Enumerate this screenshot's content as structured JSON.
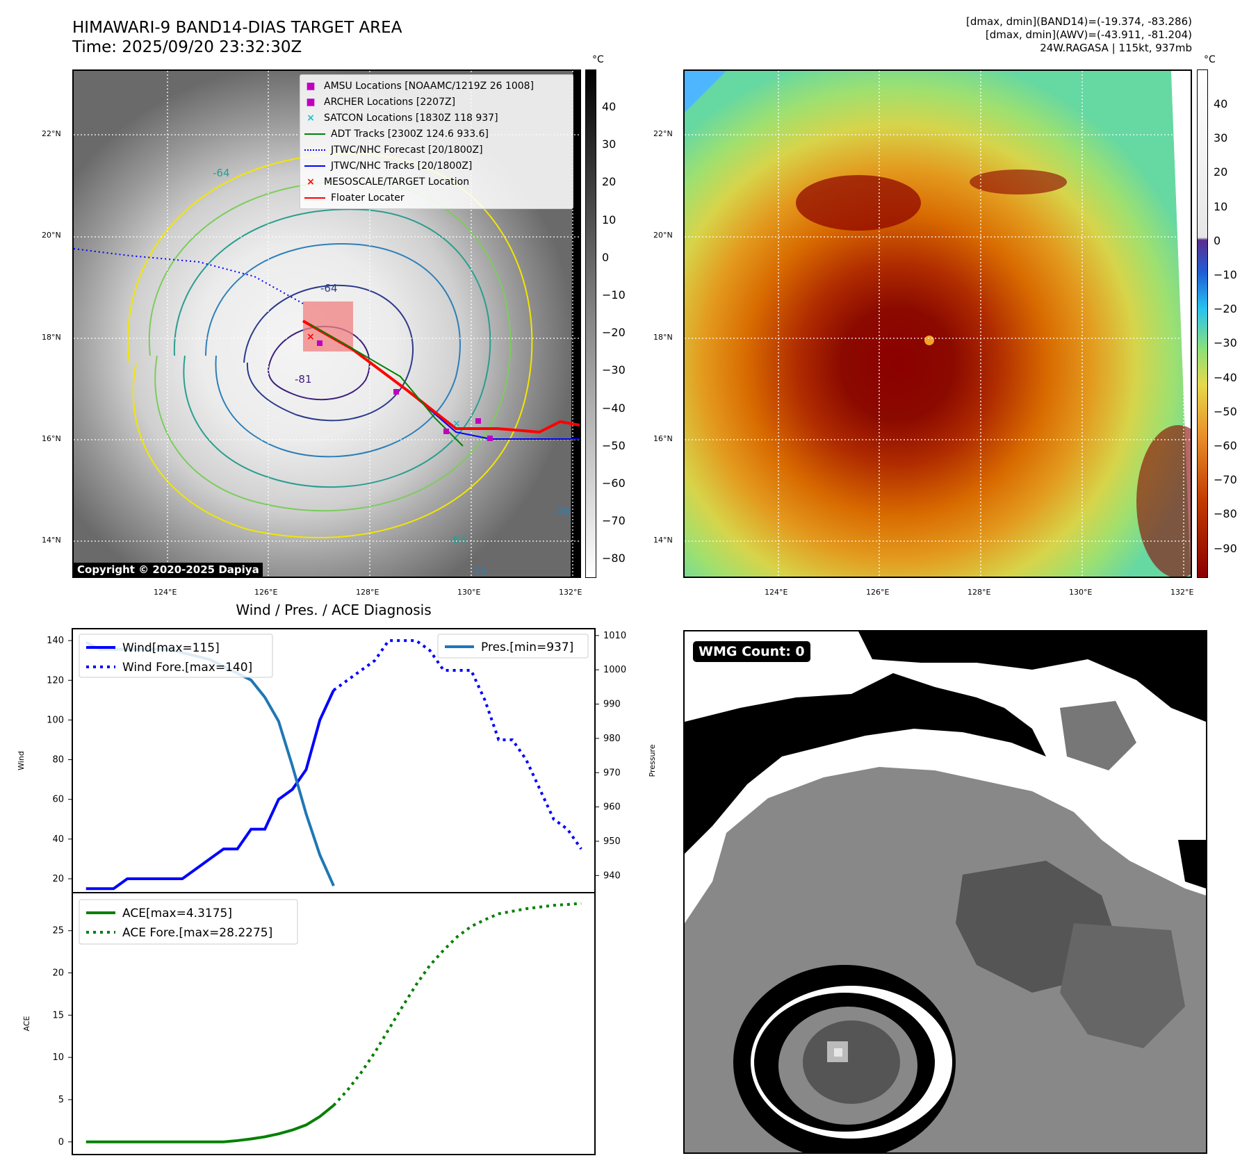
{
  "title": {
    "line1": "HIMAWARI-9 BAND14-DIAS TARGET AREA",
    "line2": "Time: 2025/09/20 23:32:30Z"
  },
  "info": {
    "line1": "[dmax, dmin](BAND14)=(-19.374, -83.286)",
    "line2": "[dmax, dmin](AWV)=(-43.911, -81.204)",
    "line3": "24W.RAGASA | 115kt, 937mb"
  },
  "map": {
    "lon_ticks": [
      "124°E",
      "126°E",
      "128°E",
      "130°E",
      "132°E"
    ],
    "lat_ticks": [
      "22°N",
      "20°N",
      "18°N",
      "16°N",
      "14°N"
    ],
    "copyright": "Copyright © 2020-2025 Dapiya",
    "contour_labels": [
      "-64",
      "-64",
      "-81",
      "-76",
      "-76",
      "-64"
    ]
  },
  "legend_sat": {
    "items": [
      {
        "label": "AMSU Locations [NOAAMC/1219Z 26 1008]",
        "color": "#c000c0",
        "marker": "square"
      },
      {
        "label": "ARCHER Locations [2207Z]",
        "color": "#c000c0",
        "marker": "square"
      },
      {
        "label": "SATCON Locations [1830Z 118 937]",
        "color": "#17becf",
        "marker": "x"
      },
      {
        "label": "ADT Tracks [2300Z 124.6 933.6]",
        "color": "#008000",
        "marker": "line"
      },
      {
        "label": "JTWC/NHC Forecast [20/1800Z]",
        "color": "#0000ff",
        "marker": "dotted"
      },
      {
        "label": "JTWC/NHC Tracks [20/1800Z]",
        "color": "#0000ff",
        "marker": "dotline"
      },
      {
        "label": "MESOSCALE/TARGET Location",
        "color": "#ff0000",
        "marker": "x"
      },
      {
        "label": "Floater Locater",
        "color": "#ff0000",
        "marker": "line"
      }
    ]
  },
  "colorbar_gray": {
    "unit": "°C",
    "ticks": [
      "40",
      "30",
      "20",
      "10",
      "0",
      "−10",
      "−20",
      "−30",
      "−40",
      "−50",
      "−60",
      "−70",
      "−80"
    ]
  },
  "colorbar_color": {
    "unit": "°C",
    "ticks": [
      "40",
      "30",
      "20",
      "10",
      "0",
      "−10",
      "−20",
      "−30",
      "−40",
      "−50",
      "−60",
      "−70",
      "−80",
      "−90"
    ]
  },
  "colors": {
    "wind": "#0000ff",
    "pressure": "#1f77b4",
    "ace": "#008000",
    "floater": "#ff0000"
  },
  "wmg": {
    "badge": "WMG Count: 0"
  },
  "chart_data": [
    {
      "type": "line",
      "title": "Wind / Pres. / ACE Diagnosis",
      "xlabel": "",
      "ylabel": "Wind",
      "ylim": [
        13,
        146
      ],
      "yticks": [
        20,
        40,
        60,
        80,
        100,
        120,
        140
      ],
      "y2label": "Pressure",
      "y2lim": [
        935,
        1012
      ],
      "y2ticks": [
        940,
        950,
        960,
        970,
        980,
        990,
        1000,
        1010
      ],
      "series": [
        {
          "name": "Wind[max=115]",
          "style": "solid",
          "color": "#0000ff",
          "x": [
            0,
            1,
            2,
            3,
            4,
            5,
            6,
            7,
            8,
            9,
            10,
            11,
            12,
            13,
            14,
            15,
            16,
            17,
            18
          ],
          "values": [
            15,
            15,
            15,
            20,
            20,
            20,
            20,
            20,
            25,
            30,
            35,
            35,
            45,
            45,
            60,
            65,
            75,
            100,
            115
          ]
        },
        {
          "name": "Wind Fore.[max=140]",
          "style": "dotted",
          "color": "#0000ff",
          "x": [
            18,
            19,
            20,
            21,
            22,
            23,
            24,
            25,
            26,
            27,
            28,
            29,
            30,
            31,
            32,
            33,
            34,
            35,
            36
          ],
          "values": [
            115,
            120,
            125,
            130,
            140,
            140,
            140,
            135,
            125,
            125,
            125,
            110,
            90,
            90,
            80,
            65,
            50,
            45,
            35
          ]
        },
        {
          "name": "Pres.[min=937]",
          "style": "solid",
          "color": "#1f77b4",
          "axis": "right",
          "x": [
            0,
            1,
            2,
            3,
            4,
            5,
            6,
            7,
            8,
            9,
            10,
            11,
            12,
            13,
            14,
            15,
            16,
            17,
            18
          ],
          "values": [
            1008,
            1006,
            1006,
            1006,
            1006,
            1006,
            1006,
            1005,
            1004,
            1003,
            1001,
            999,
            997,
            992,
            985,
            972,
            958,
            946,
            937
          ]
        }
      ]
    },
    {
      "type": "line",
      "xlabel": "",
      "ylabel": "ACE",
      "ylim": [
        -1.5,
        29.5
      ],
      "yticks": [
        0,
        5,
        10,
        15,
        20,
        25
      ],
      "series": [
        {
          "name": "ACE[max=4.3175]",
          "style": "solid",
          "color": "#008000",
          "x": [
            0,
            1,
            2,
            3,
            4,
            5,
            6,
            7,
            8,
            9,
            10,
            11,
            12,
            13,
            14,
            15,
            16,
            17,
            18
          ],
          "values": [
            0,
            0,
            0,
            0,
            0,
            0,
            0,
            0,
            0,
            0,
            0,
            0.15,
            0.35,
            0.6,
            0.95,
            1.4,
            2.0,
            3.0,
            4.3175
          ]
        },
        {
          "name": "ACE Fore.[max=28.2275]",
          "style": "dotted",
          "color": "#008000",
          "x": [
            18,
            19,
            20,
            21,
            22,
            23,
            24,
            25,
            26,
            27,
            28,
            29,
            30,
            31,
            32,
            33,
            34,
            35,
            36
          ],
          "values": [
            4.3175,
            6.1,
            8.2,
            10.6,
            13.3,
            16.0,
            18.6,
            20.9,
            22.7,
            24.3,
            25.5,
            26.3,
            27.0,
            27.3,
            27.6,
            27.8,
            28.0,
            28.1,
            28.2275
          ]
        }
      ]
    }
  ]
}
